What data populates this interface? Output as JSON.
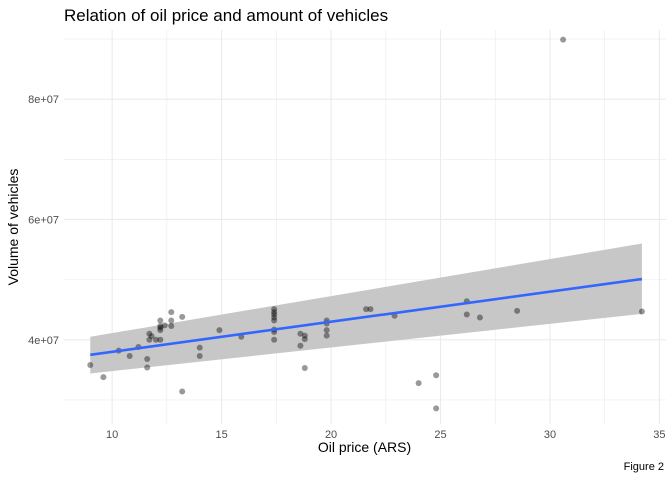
{
  "chart_data": {
    "type": "scatter",
    "title": "Relation of oil price and amount of vehicles",
    "xlabel": "Oil price (ARS)",
    "ylabel": "Volume of vehicles",
    "caption": "Figure 2",
    "xlim": [
      7.8,
      35.3
    ],
    "ylim": [
      26000000,
      91500000
    ],
    "x_ticks": [
      10,
      15,
      20,
      25,
      30,
      35
    ],
    "y_ticks": [
      40000000,
      60000000,
      80000000
    ],
    "x_tick_labels": [
      "10",
      "15",
      "20",
      "25",
      "30",
      "35"
    ],
    "y_tick_labels": [
      "4e+07",
      "6e+07",
      "8e+07"
    ],
    "grid": true,
    "legend": "none",
    "point_color": "#000000",
    "point_opacity": 0.4,
    "points": [
      {
        "x": 9.0,
        "y": 35800000
      },
      {
        "x": 9.6,
        "y": 33800000
      },
      {
        "x": 10.3,
        "y": 38200000
      },
      {
        "x": 10.8,
        "y": 37300000
      },
      {
        "x": 11.2,
        "y": 38800000
      },
      {
        "x": 11.6,
        "y": 36800000
      },
      {
        "x": 11.6,
        "y": 35400000
      },
      {
        "x": 11.7,
        "y": 40000000
      },
      {
        "x": 11.7,
        "y": 41000000
      },
      {
        "x": 11.8,
        "y": 40600000
      },
      {
        "x": 12.0,
        "y": 40000000
      },
      {
        "x": 12.2,
        "y": 41600000
      },
      {
        "x": 12.2,
        "y": 42000000
      },
      {
        "x": 12.2,
        "y": 42300000
      },
      {
        "x": 12.2,
        "y": 43200000
      },
      {
        "x": 12.2,
        "y": 40000000
      },
      {
        "x": 12.4,
        "y": 42400000
      },
      {
        "x": 12.7,
        "y": 42300000
      },
      {
        "x": 12.7,
        "y": 43200000
      },
      {
        "x": 12.7,
        "y": 44600000
      },
      {
        "x": 13.2,
        "y": 43800000
      },
      {
        "x": 13.2,
        "y": 31400000
      },
      {
        "x": 14.0,
        "y": 38700000
      },
      {
        "x": 14.0,
        "y": 37300000
      },
      {
        "x": 14.9,
        "y": 41600000
      },
      {
        "x": 15.9,
        "y": 40500000
      },
      {
        "x": 17.4,
        "y": 45100000
      },
      {
        "x": 17.4,
        "y": 44600000
      },
      {
        "x": 17.4,
        "y": 44200000
      },
      {
        "x": 17.4,
        "y": 43700000
      },
      {
        "x": 17.4,
        "y": 43200000
      },
      {
        "x": 17.4,
        "y": 41700000
      },
      {
        "x": 17.4,
        "y": 41300000
      },
      {
        "x": 17.4,
        "y": 40000000
      },
      {
        "x": 18.6,
        "y": 41000000
      },
      {
        "x": 18.6,
        "y": 39000000
      },
      {
        "x": 18.8,
        "y": 40100000
      },
      {
        "x": 18.8,
        "y": 40700000
      },
      {
        "x": 18.8,
        "y": 35300000
      },
      {
        "x": 19.8,
        "y": 43200000
      },
      {
        "x": 19.8,
        "y": 42700000
      },
      {
        "x": 19.8,
        "y": 41600000
      },
      {
        "x": 19.8,
        "y": 40700000
      },
      {
        "x": 21.6,
        "y": 45100000
      },
      {
        "x": 21.8,
        "y": 45100000
      },
      {
        "x": 22.9,
        "y": 44000000
      },
      {
        "x": 24.0,
        "y": 32800000
      },
      {
        "x": 24.8,
        "y": 34100000
      },
      {
        "x": 24.8,
        "y": 28600000
      },
      {
        "x": 26.2,
        "y": 46400000
      },
      {
        "x": 26.2,
        "y": 44200000
      },
      {
        "x": 26.8,
        "y": 43700000
      },
      {
        "x": 28.5,
        "y": 44800000
      },
      {
        "x": 30.6,
        "y": 89900000
      },
      {
        "x": 34.2,
        "y": 44700000
      }
    ],
    "trend": {
      "method": "linear",
      "color": "#3366FF",
      "band_color": "#C7C7C7",
      "x_start": 9.0,
      "x_end": 34.2,
      "y_start": 37500000,
      "y_end": 50100000,
      "band_start": [
        34400000,
        40500000
      ],
      "band_end": [
        44300000,
        56000000
      ]
    }
  }
}
